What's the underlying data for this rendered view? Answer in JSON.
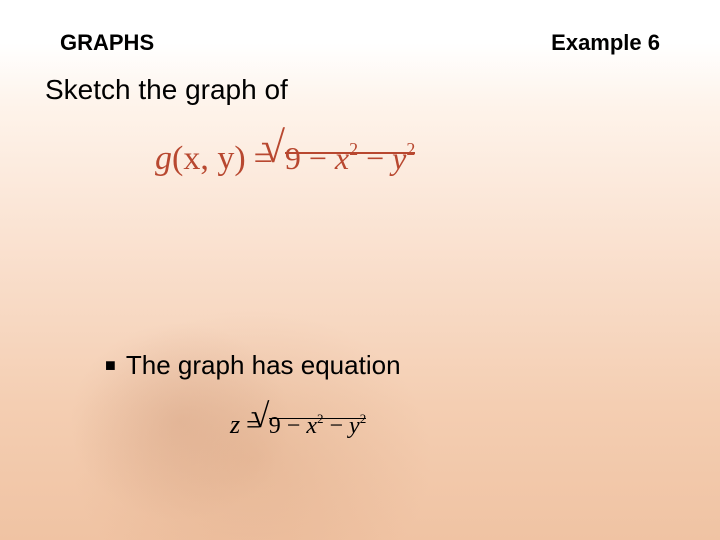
{
  "colors": {
    "background_top": "#ffffff",
    "background_mid": "#f9decb",
    "background_bottom": "#f0c3a3",
    "text_primary": "#000000",
    "equation_main_color": "#b84830",
    "equation_secondary_color": "#000000"
  },
  "typography": {
    "header_fontsize": 22,
    "instruction_fontsize": 28,
    "bullet_fontsize": 26,
    "equation_main_fontsize": 34,
    "equation_small_fontsize": 26,
    "font_ui": "Arial",
    "font_math": "Times New Roman"
  },
  "header": {
    "section_title": "GRAPHS",
    "example_label": "Example 6"
  },
  "instruction": "Sketch the graph of",
  "equation_main": {
    "lhs_func": "g",
    "lhs_args": "(x, y)",
    "equals": "=",
    "radicand": "9 − x² − y²",
    "radicand_parts": {
      "const": "9",
      "minus1": " − ",
      "var1": "x",
      "exp1": "2",
      "minus2": " − ",
      "var2": "y",
      "exp2": "2"
    }
  },
  "bullet": {
    "marker": "■",
    "text": "The graph has equation"
  },
  "equation_small": {
    "lhs": "z",
    "equals": "=",
    "radicand": "9 − x² − y²",
    "radicand_parts": {
      "const": "9",
      "minus1": " − ",
      "var1": "x",
      "exp1": "2",
      "minus2": " − ",
      "var2": "y",
      "exp2": "2"
    }
  }
}
